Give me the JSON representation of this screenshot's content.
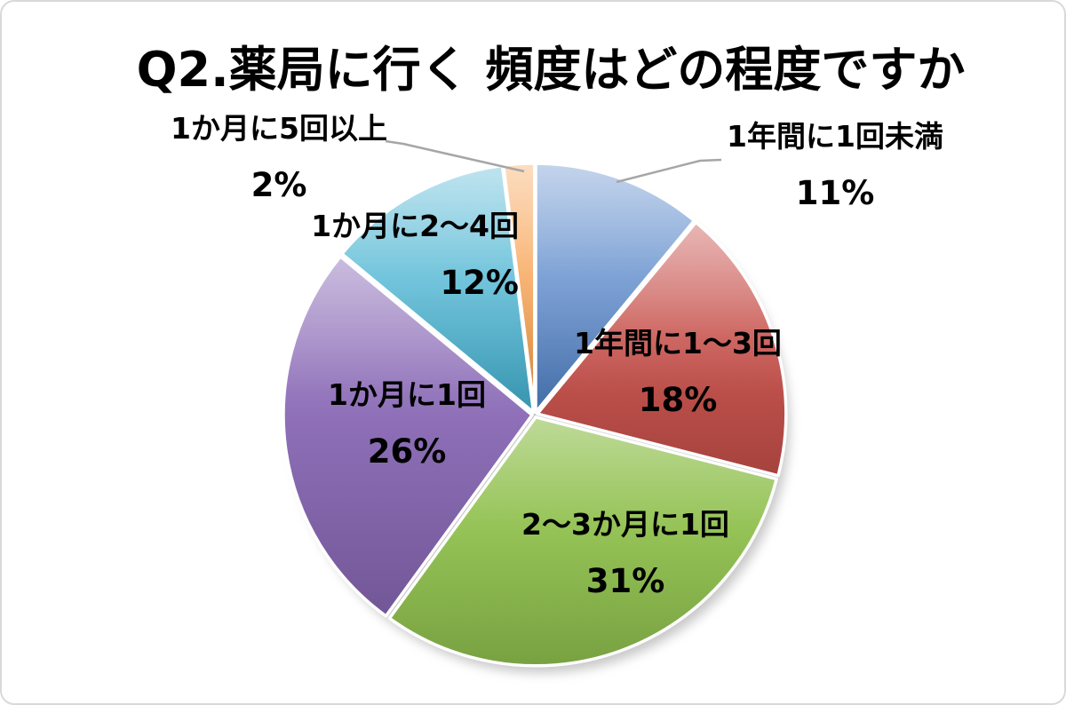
{
  "chart_data": {
    "type": "pie",
    "title": "Q2.薬局に行く 頻度はどの程度ですか",
    "direction": "clockwise",
    "start_angle_deg": 0,
    "legend_position": "none",
    "total": 100,
    "slices": [
      {
        "label": "1年間に1回未満",
        "value": 11,
        "pct_label": "11%",
        "color": "#5585C8",
        "leader_line": true
      },
      {
        "label": "1年間に1～3回",
        "value": 18,
        "pct_label": "18%",
        "color": "#C64E49",
        "leader_line": false
      },
      {
        "label": "2～3か月に1回",
        "value": 31,
        "pct_label": "31%",
        "color": "#8FC04D",
        "leader_line": false
      },
      {
        "label": "1か月に1回",
        "value": 26,
        "pct_label": "26%",
        "color": "#8867B4",
        "leader_line": false
      },
      {
        "label": "1か月に2～4回",
        "value": 12,
        "pct_label": "12%",
        "color": "#46B2D1",
        "leader_line": false
      },
      {
        "label": "1か月に5回以上",
        "value": 2,
        "pct_label": "2%",
        "color": "#F79C49",
        "leader_line": true
      }
    ],
    "style": {
      "title_color": "#000000",
      "label_color": "#000000",
      "leader_line_color": "#A6A6A6",
      "slice_border_color": "#FFFFFF",
      "frame_border_color": "#D9D9D9",
      "background_color": "#FFFFFF"
    }
  }
}
